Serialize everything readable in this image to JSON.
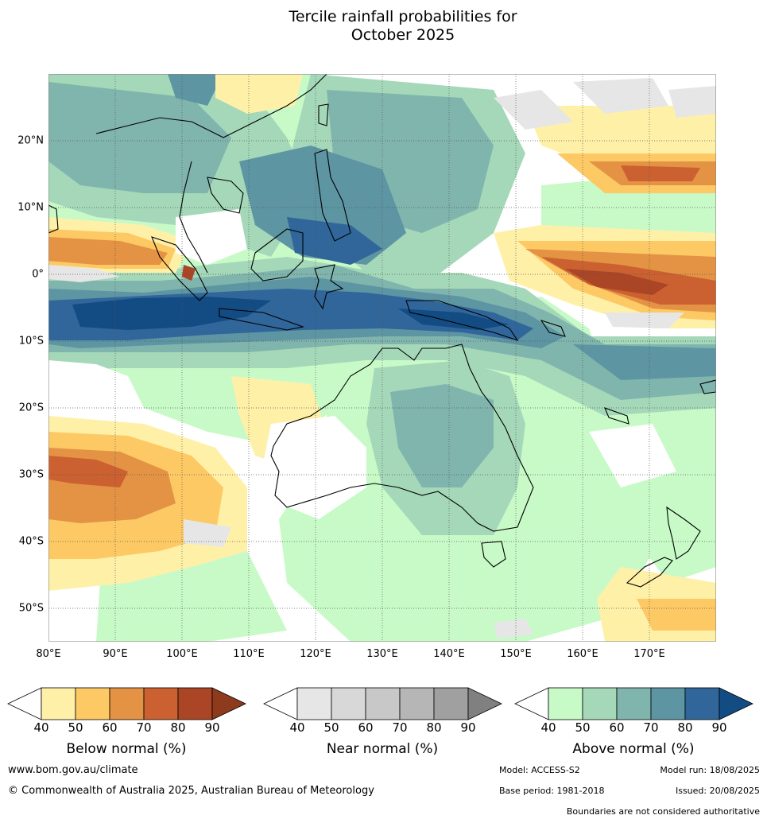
{
  "title_line1": "Tercile rainfall probabilities for",
  "title_line2": "October 2025",
  "lat_labels": [
    "20°N",
    "10°N",
    "0°",
    "10°S",
    "20°S",
    "30°S",
    "40°S",
    "50°S"
  ],
  "lon_labels": [
    "80°E",
    "90°E",
    "100°E",
    "110°E",
    "120°E",
    "130°E",
    "140°E",
    "150°E",
    "160°E",
    "170°E"
  ],
  "colorbars": [
    {
      "id": "below",
      "title": "Below normal (%)",
      "ticks": [
        "40",
        "50",
        "60",
        "70",
        "80",
        "90"
      ],
      "colors": [
        "#fff0a8",
        "#fdc965",
        "#e39343",
        "#cb6130",
        "#aa4525",
        "#8e3a1c"
      ]
    },
    {
      "id": "near",
      "title": "Near normal (%)",
      "ticks": [
        "40",
        "50",
        "60",
        "70",
        "80",
        "90"
      ],
      "colors": [
        "#e6e6e6",
        "#d8d8d8",
        "#c8c8c8",
        "#b6b6b6",
        "#a0a0a0",
        "#808080"
      ]
    },
    {
      "id": "above",
      "title": "Above normal (%)",
      "ticks": [
        "40",
        "50",
        "60",
        "70",
        "80",
        "90"
      ],
      "colors": [
        "#c8fac8",
        "#a5d8b9",
        "#80b5ad",
        "#5d95a3",
        "#30669a",
        "#134b83"
      ]
    }
  ],
  "footer": {
    "url": "www.bom.gov.au/climate",
    "copyright": "© Commonwealth of Australia 2025, Australian Bureau of Meteorology",
    "model": "Model: ACCESS-S2",
    "model_run": "Model run: 18/08/2025",
    "base_period": "Base period: 1981-2018",
    "issued": "Issued: 20/08/2025",
    "disclaimer": "Boundaries are not considered authoritative"
  }
}
